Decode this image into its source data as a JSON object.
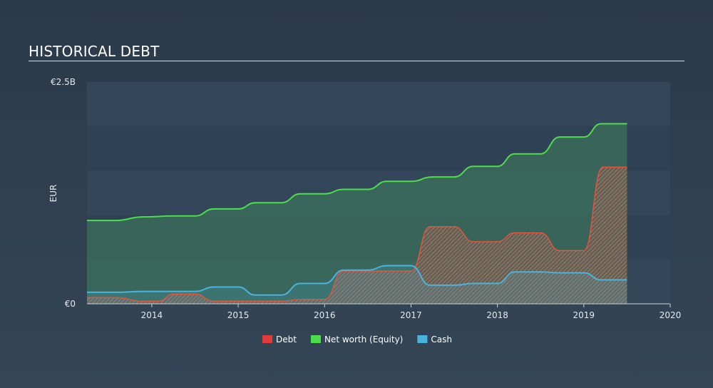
{
  "chart_data": {
    "type": "area",
    "title": "HISTORICAL DEBT",
    "xlabel": "",
    "ylabel": "EUR",
    "ylim": [
      0,
      2.5
    ],
    "xlim": [
      2013.25,
      2020
    ],
    "y_tick_labels": [
      {
        "value": 2.5,
        "label": "€2.5B"
      },
      {
        "value": 0,
        "label": "€0"
      }
    ],
    "x_ticks": [
      2014,
      2015,
      2016,
      2017,
      2018,
      2019,
      2020
    ],
    "x_tick_labels": [
      "2014",
      "2015",
      "2016",
      "2017",
      "2018",
      "2019",
      "2020"
    ],
    "legend": [
      {
        "name": "Debt",
        "color": "#e03a3a"
      },
      {
        "name": "Net worth (Equity)",
        "color": "#4ddf4a"
      },
      {
        "name": "Cash",
        "color": "#4ab3de"
      }
    ],
    "legend_position": "bottom-center",
    "series": [
      {
        "name": "Net worth (Equity)",
        "color": "#4ddf4a",
        "x": [
          2013.25,
          2013.58,
          2013.9,
          2014.25,
          2014.5,
          2014.72,
          2015.0,
          2015.2,
          2015.5,
          2015.72,
          2016.0,
          2016.22,
          2016.5,
          2016.72,
          2017.0,
          2017.25,
          2017.5,
          2017.72,
          2018.0,
          2018.2,
          2018.5,
          2018.72,
          2019.0,
          2019.2,
          2019.5
        ],
        "values": [
          0.94,
          0.94,
          0.98,
          0.99,
          0.99,
          1.07,
          1.07,
          1.14,
          1.14,
          1.24,
          1.24,
          1.29,
          1.29,
          1.38,
          1.38,
          1.43,
          1.43,
          1.55,
          1.55,
          1.69,
          1.69,
          1.88,
          1.88,
          2.03,
          2.03
        ]
      },
      {
        "name": "Debt",
        "color": "#e03a3a",
        "x": [
          2013.25,
          2013.58,
          2013.9,
          2014.08,
          2014.25,
          2014.5,
          2014.72,
          2015.0,
          2015.5,
          2015.72,
          2016.0,
          2016.22,
          2016.5,
          2017.0,
          2017.22,
          2017.5,
          2017.72,
          2018.0,
          2018.2,
          2018.5,
          2018.72,
          2019.0,
          2019.22,
          2019.5
        ],
        "values": [
          0.07,
          0.07,
          0.03,
          0.03,
          0.11,
          0.11,
          0.03,
          0.03,
          0.03,
          0.05,
          0.05,
          0.37,
          0.37,
          0.37,
          0.87,
          0.87,
          0.7,
          0.7,
          0.8,
          0.8,
          0.6,
          0.6,
          1.54,
          1.54
        ]
      },
      {
        "name": "Cash",
        "color": "#4ab3de",
        "x": [
          2013.25,
          2013.58,
          2013.9,
          2014.25,
          2014.5,
          2014.72,
          2015.0,
          2015.2,
          2015.5,
          2015.72,
          2016.0,
          2016.22,
          2016.5,
          2016.72,
          2017.0,
          2017.22,
          2017.5,
          2017.72,
          2018.0,
          2018.2,
          2018.5,
          2018.72,
          2019.0,
          2019.2,
          2019.5
        ],
        "values": [
          0.13,
          0.13,
          0.14,
          0.14,
          0.14,
          0.19,
          0.19,
          0.1,
          0.1,
          0.23,
          0.23,
          0.38,
          0.38,
          0.43,
          0.43,
          0.21,
          0.21,
          0.23,
          0.23,
          0.36,
          0.36,
          0.35,
          0.35,
          0.27,
          0.27
        ]
      }
    ]
  }
}
